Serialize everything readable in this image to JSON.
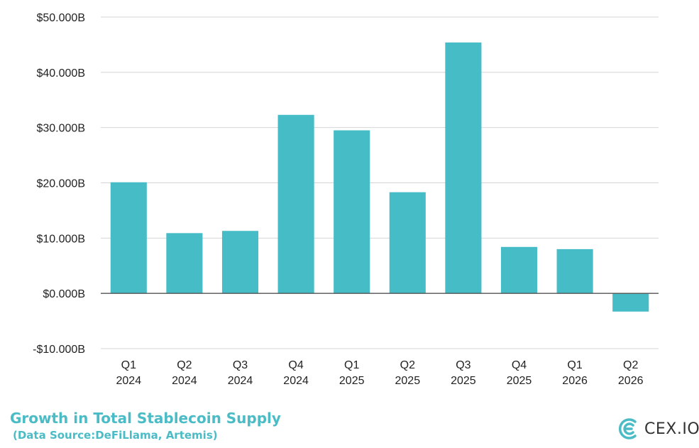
{
  "chart_data": {
    "type": "bar",
    "title": "Growth in Total Stablecoin Supply",
    "subtitle": "(Data Source:DeFiLlama, Artemis)",
    "categories": [
      [
        "Q1",
        "2024"
      ],
      [
        "Q2",
        "2024"
      ],
      [
        "Q3",
        "2024"
      ],
      [
        "Q4",
        "2024"
      ],
      [
        "Q1",
        "2025"
      ],
      [
        "Q2",
        "2025"
      ],
      [
        "Q3",
        "2025"
      ],
      [
        "Q4",
        "2025"
      ],
      [
        "Q1",
        "2026"
      ],
      [
        "Q2",
        "2026"
      ]
    ],
    "values": [
      20.1,
      10.9,
      11.3,
      32.3,
      29.5,
      18.3,
      45.4,
      8.4,
      8.0,
      -3.3
    ],
    "unit": "B",
    "ylim": [
      -10,
      50
    ],
    "yticks": [
      -10,
      0,
      10,
      20,
      30,
      40,
      50
    ],
    "ytick_labels": [
      "-$10.000B",
      "$0.000B",
      "$10.000B",
      "$20.000B",
      "$30.000B",
      "$40.000B",
      "$50.000B"
    ],
    "grid": true,
    "bar_color": "#45bcc6",
    "legend": "none"
  },
  "brand": {
    "logo_text": "CEX.IO",
    "accent_color": "#4bbcc6",
    "icon": "cex-logo-icon"
  }
}
